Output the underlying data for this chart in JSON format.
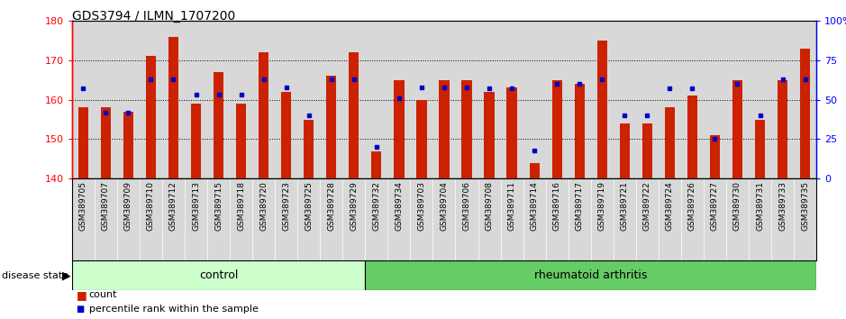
{
  "title": "GDS3794 / ILMN_1707200",
  "samples": [
    "GSM389705",
    "GSM389707",
    "GSM389709",
    "GSM389710",
    "GSM389712",
    "GSM389713",
    "GSM389715",
    "GSM389718",
    "GSM389720",
    "GSM389723",
    "GSM389725",
    "GSM389728",
    "GSM389729",
    "GSM389732",
    "GSM389734",
    "GSM389703",
    "GSM389704",
    "GSM389706",
    "GSM389708",
    "GSM389711",
    "GSM389714",
    "GSM389716",
    "GSM389717",
    "GSM389719",
    "GSM389721",
    "GSM389722",
    "GSM389724",
    "GSM389726",
    "GSM389727",
    "GSM389730",
    "GSM389731",
    "GSM389733",
    "GSM389735"
  ],
  "counts": [
    158,
    158,
    157,
    171,
    176,
    159,
    167,
    159,
    172,
    162,
    155,
    166,
    172,
    147,
    165,
    160,
    165,
    165,
    162,
    163,
    144,
    165,
    164,
    175,
    154,
    154,
    158,
    161,
    151,
    165,
    155,
    165,
    173
  ],
  "percentile_ranks": [
    57,
    42,
    42,
    63,
    63,
    53,
    53,
    53,
    63,
    58,
    40,
    63,
    63,
    20,
    51,
    58,
    58,
    58,
    57,
    57,
    18,
    60,
    60,
    63,
    40,
    40,
    57,
    57,
    25,
    60,
    40,
    63,
    63
  ],
  "group_labels": [
    "control",
    "rheumatoid arthritis"
  ],
  "group_counts": [
    13,
    20
  ],
  "group_colors": [
    "#ccffcc",
    "#66cc66"
  ],
  "bar_color": "#cc2200",
  "marker_color": "#0000cc",
  "ymin": 140,
  "ymax": 180,
  "yticks": [
    140,
    150,
    160,
    170,
    180
  ],
  "y2min": 0,
  "y2max": 100,
  "y2ticks": [
    0,
    25,
    50,
    75,
    100
  ],
  "y2ticklabels": [
    "0",
    "25",
    "50",
    "75",
    "100%"
  ],
  "bg_color": "#ffffff",
  "xtick_bg_color": "#d8d8d8"
}
